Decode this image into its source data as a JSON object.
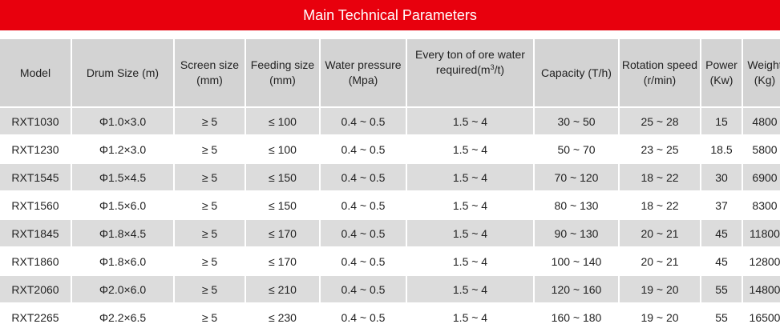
{
  "title": "Main Technical Parameters",
  "headers": {
    "model": "Model",
    "drum_size": "Drum Size (m)",
    "screen_size": "Screen size (mm)",
    "feeding_size": "Feeding size (mm)",
    "water_pressure": "Water pressure (Mpa)",
    "water_per_ton_pre": "Every ton of ore water required(m",
    "water_per_ton_sup": "3",
    "water_per_ton_post": "/t)",
    "capacity": "Capacity (T/h)",
    "rotation_speed": "Rotation speed (r/min)",
    "power": "Power (Kw)",
    "weight": "Weight (Kg)"
  },
  "rows": [
    [
      "RXT1030",
      "Φ1.0×3.0",
      "≥ 5",
      "≤ 100",
      "0.4 ~ 0.5",
      "1.5 ~ 4",
      "30 ~ 50",
      "25 ~ 28",
      "15",
      "4800"
    ],
    [
      "RXT1230",
      "Φ1.2×3.0",
      "≥ 5",
      "≤ 100",
      "0.4 ~ 0.5",
      "1.5 ~ 4",
      "50 ~ 70",
      "23 ~ 25",
      "18.5",
      "5800"
    ],
    [
      "RXT1545",
      "Φ1.5×4.5",
      "≥ 5",
      "≤ 150",
      "0.4 ~ 0.5",
      "1.5 ~ 4",
      "70 ~ 120",
      "18 ~ 22",
      "30",
      "6900"
    ],
    [
      "RXT1560",
      "Φ1.5×6.0",
      "≥ 5",
      "≤ 150",
      "0.4 ~ 0.5",
      "1.5 ~ 4",
      "80 ~ 130",
      "18 ~ 22",
      "37",
      "8300"
    ],
    [
      "RXT1845",
      "Φ1.8×4.5",
      "≥ 5",
      "≤ 170",
      "0.4 ~ 0.5",
      "1.5 ~ 4",
      "90 ~ 130",
      "20 ~ 21",
      "45",
      "11800"
    ],
    [
      "RXT1860",
      "Φ1.8×6.0",
      "≥ 5",
      "≤ 170",
      "0.4 ~ 0.5",
      "1.5 ~ 4",
      "100 ~ 140",
      "20 ~ 21",
      "45",
      "12800"
    ],
    [
      "RXT2060",
      "Φ2.0×6.0",
      "≥ 5",
      "≤ 210",
      "0.4 ~ 0.5",
      "1.5 ~ 4",
      "120 ~ 160",
      "19 ~ 20",
      "55",
      "14800"
    ],
    [
      "RXT2265",
      "Φ2.2×6.5",
      "≥ 5",
      "≤ 230",
      "0.4 ~ 0.5",
      "1.5 ~ 4",
      "160 ~ 180",
      "19 ~ 20",
      "55",
      "16500"
    ]
  ],
  "colors": {
    "title_bg": "#e8000d",
    "header_bg": "#d3d3d3",
    "stripe": "#dcdcdc"
  }
}
